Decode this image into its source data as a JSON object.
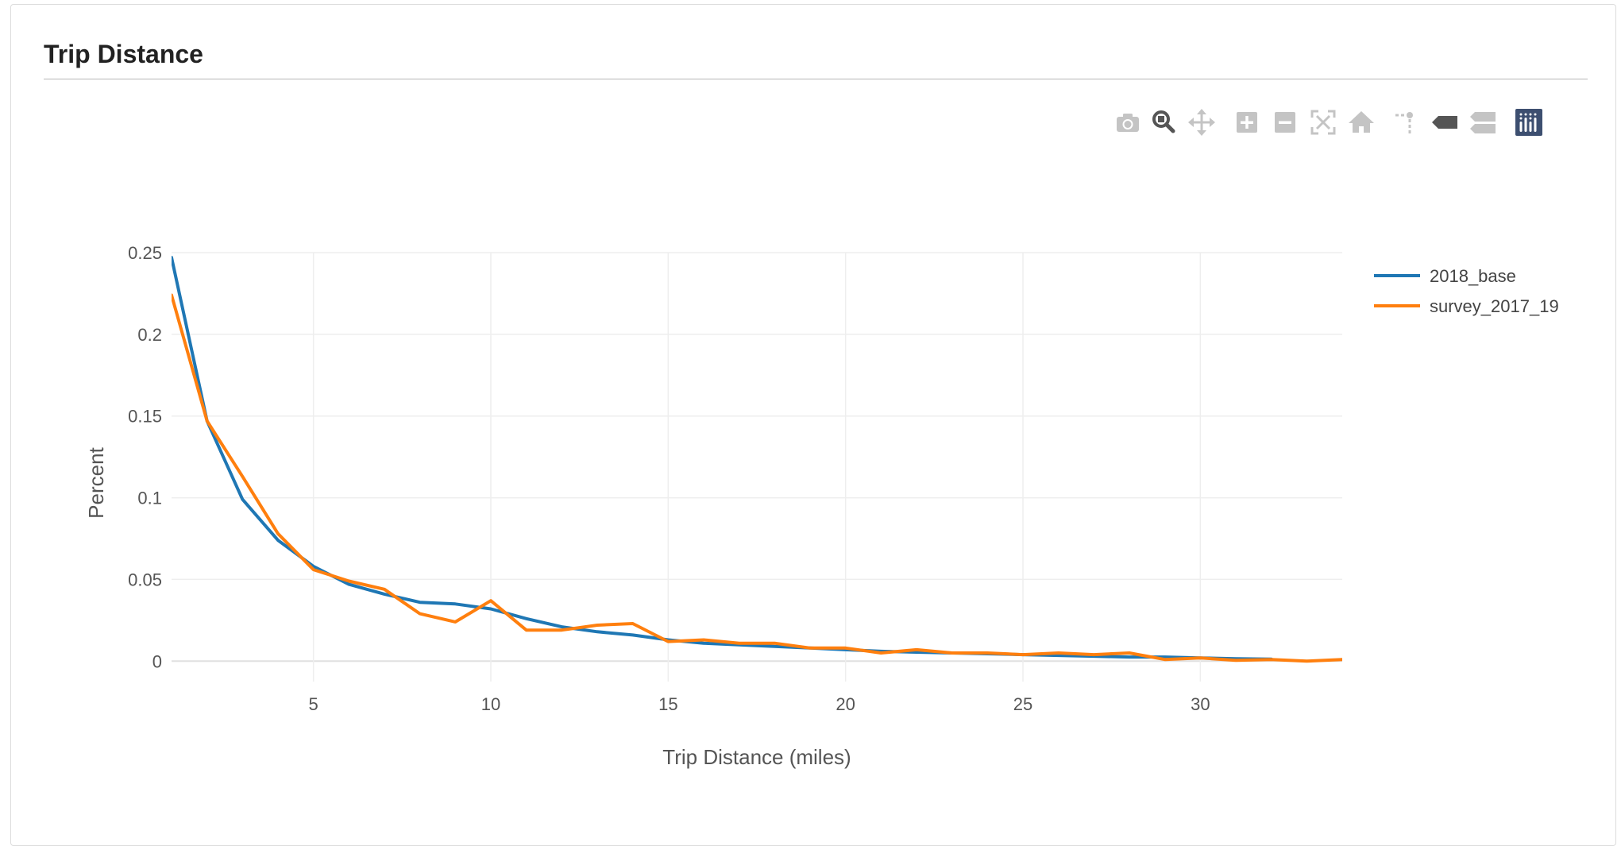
{
  "panel": {
    "title": "Trip Distance"
  },
  "modebar": {
    "buttons": [
      {
        "id": "snapshot",
        "icon": "camera-icon"
      },
      {
        "id": "zoom",
        "icon": "zoom-icon",
        "active": true
      },
      {
        "id": "pan",
        "icon": "pan-icon"
      },
      {
        "id": "zoom-in",
        "icon": "plus-square-icon"
      },
      {
        "id": "zoom-out",
        "icon": "minus-square-icon"
      },
      {
        "id": "autoscale",
        "icon": "autoscale-icon"
      },
      {
        "id": "reset",
        "icon": "home-icon"
      },
      {
        "id": "spike",
        "icon": "spike-lines-icon"
      },
      {
        "id": "hover-closest",
        "icon": "hover-closest-icon"
      },
      {
        "id": "hover-compare",
        "icon": "hover-compare-icon"
      },
      {
        "id": "plotly-logo",
        "icon": "plotly-logo-icon"
      }
    ],
    "colors": {
      "inactive": "#c4c4c4",
      "active": "#555555",
      "logo": "#3d4f70"
    }
  },
  "chart_data": {
    "type": "line",
    "xlabel": "Trip Distance (miles)",
    "ylabel": "Percent",
    "xlim": [
      1,
      34
    ],
    "ylim": [
      -0.0125,
      0.25
    ],
    "xticks": [
      "5",
      "10",
      "15",
      "20",
      "25",
      "30"
    ],
    "yticks": [
      "0",
      "0.05",
      "0.1",
      "0.15",
      "0.2",
      "0.25"
    ],
    "grid": true,
    "legend_position": "top-right",
    "series": [
      {
        "name": "2018_base",
        "color": "#1f77b4",
        "x": [
          1,
          2,
          3,
          4,
          5,
          6,
          7,
          8,
          9,
          10,
          11,
          12,
          13,
          14,
          15,
          16,
          17,
          18,
          19,
          20,
          21,
          22,
          23,
          24,
          25,
          26,
          27,
          28,
          29,
          30,
          31,
          32
        ],
        "y": [
          0.247,
          0.147,
          0.099,
          0.074,
          0.058,
          0.047,
          0.041,
          0.036,
          0.035,
          0.032,
          0.026,
          0.021,
          0.018,
          0.016,
          0.013,
          0.011,
          0.01,
          0.009,
          0.008,
          0.007,
          0.006,
          0.0055,
          0.005,
          0.0045,
          0.004,
          0.0035,
          0.003,
          0.0025,
          0.0025,
          0.002,
          0.0015,
          0.0012
        ]
      },
      {
        "name": "survey_2017_19",
        "color": "#ff7f0e",
        "x": [
          1,
          2,
          3,
          4,
          5,
          6,
          7,
          8,
          9,
          10,
          11,
          12,
          13,
          14,
          15,
          16,
          17,
          18,
          19,
          20,
          21,
          22,
          23,
          24,
          25,
          26,
          27,
          28,
          29,
          30,
          31,
          32,
          33,
          34
        ],
        "y": [
          0.224,
          0.147,
          0.113,
          0.078,
          0.056,
          0.049,
          0.044,
          0.029,
          0.024,
          0.037,
          0.019,
          0.019,
          0.022,
          0.023,
          0.012,
          0.013,
          0.011,
          0.011,
          0.008,
          0.008,
          0.005,
          0.007,
          0.005,
          0.005,
          0.004,
          0.005,
          0.004,
          0.005,
          0.001,
          0.002,
          0.0005,
          0.001,
          0.0,
          0.001
        ]
      }
    ]
  }
}
